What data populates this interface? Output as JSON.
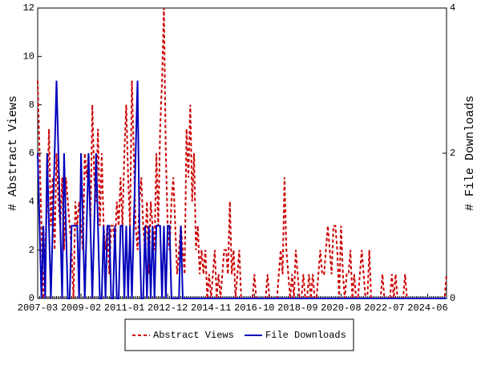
{
  "chart_data": {
    "type": "line",
    "ylabel": "# Abstract Views",
    "y2label": "# File Downloads",
    "categories": [
      "2007-03",
      null,
      null,
      null,
      null,
      null,
      null,
      null,
      null,
      null,
      null,
      null,
      null,
      null,
      null,
      null,
      null,
      null,
      null,
      null,
      null,
      null,
      null,
      "2009-02",
      null,
      null,
      null,
      null,
      null,
      null,
      null,
      null,
      null,
      null,
      null,
      null,
      null,
      null,
      null,
      null,
      null,
      null,
      null,
      null,
      null,
      null,
      "2011-01",
      null,
      null,
      null,
      null,
      null,
      null,
      null,
      null,
      null,
      null,
      null,
      null,
      null,
      null,
      null,
      null,
      null,
      null,
      null,
      null,
      null,
      null,
      "2012-12",
      null,
      null,
      null,
      null,
      null,
      null,
      null,
      null,
      null,
      null,
      null,
      null,
      null,
      null,
      null,
      null,
      null,
      null,
      null,
      null,
      null,
      null,
      "2014-11",
      null,
      null,
      null,
      null,
      null,
      null,
      null,
      null,
      null,
      null,
      null,
      null,
      null,
      null,
      null,
      null,
      null,
      null,
      null,
      null,
      null,
      null,
      "2016-10",
      null,
      null,
      null,
      null,
      null,
      null,
      null,
      null,
      null,
      null,
      null,
      null,
      null,
      null,
      null,
      null,
      null,
      null,
      null,
      null,
      null,
      null,
      "2018-09",
      null,
      null,
      null,
      null,
      null,
      null,
      null,
      null,
      null,
      null,
      null,
      null,
      null,
      null,
      null,
      null,
      null,
      null,
      null,
      null,
      null,
      null,
      "2020-08",
      null,
      null,
      null,
      null,
      null,
      null,
      null,
      null,
      null,
      null,
      null,
      null,
      null,
      null,
      null,
      null,
      null,
      null,
      null,
      null,
      null,
      null,
      "2022-07",
      null,
      null,
      null,
      null,
      null,
      null,
      null,
      null,
      null,
      null,
      null,
      null,
      null,
      null,
      null,
      null,
      null,
      null,
      null,
      null,
      null,
      null,
      "2024-06",
      null,
      null,
      null,
      null,
      null,
      null,
      null,
      null,
      null,
      null
    ],
    "series": [
      {
        "name": "Abstract Views",
        "color": "#cc0000",
        "dashed": true,
        "values": [
          9,
          6,
          3,
          0,
          2,
          4,
          7,
          3,
          5,
          2,
          6,
          4,
          3,
          5,
          2,
          5,
          4,
          3,
          2,
          0,
          4,
          3,
          4,
          3,
          2,
          6,
          5,
          6,
          3,
          8,
          5,
          4,
          7,
          3,
          6,
          3,
          2,
          3,
          1,
          3,
          3,
          2,
          4,
          3,
          5,
          3,
          6,
          8,
          5,
          3,
          9,
          6,
          3,
          2,
          4,
          5,
          3,
          2,
          4,
          1,
          4,
          3,
          2,
          6,
          3,
          7,
          9,
          12,
          6,
          3,
          2,
          4,
          5,
          3,
          1,
          2,
          3,
          2,
          1,
          7,
          5,
          8,
          4,
          6,
          2,
          3,
          1,
          2,
          1,
          2,
          0,
          1,
          0,
          1,
          2,
          0,
          1,
          0,
          1,
          2,
          2,
          1,
          4,
          1,
          2,
          0,
          1,
          2,
          0,
          0,
          0,
          0,
          0,
          0,
          0,
          1,
          0,
          0,
          0,
          0,
          0,
          0,
          1,
          0,
          0,
          0,
          0,
          0,
          1,
          2,
          1,
          5,
          2,
          1,
          0,
          1,
          0,
          2,
          1,
          0,
          0,
          1,
          0,
          0,
          1,
          0,
          1,
          0,
          0,
          1,
          2,
          1,
          1,
          2,
          3,
          2,
          1,
          3,
          3,
          2,
          0,
          3,
          1,
          0,
          1,
          1,
          2,
          0,
          1,
          0,
          0,
          1,
          2,
          1,
          0,
          0,
          2,
          0,
          0,
          0,
          0,
          0,
          0,
          1,
          0,
          0,
          0,
          0,
          1,
          0,
          1,
          0,
          0,
          0,
          0,
          1,
          0,
          0,
          0,
          0,
          0,
          0,
          0,
          0,
          0,
          0,
          0,
          0,
          0,
          0,
          0,
          0,
          0,
          0,
          0,
          0,
          0,
          1
        ]
      },
      {
        "name": "File Downloads",
        "color": "#0000bb",
        "axis": "y2",
        "values": [
          2,
          1,
          0,
          1,
          0,
          2,
          1,
          0,
          1,
          2,
          3,
          2,
          1,
          0,
          2,
          1,
          0,
          0,
          1,
          1,
          1,
          1,
          0,
          2,
          1,
          0,
          1,
          2,
          1,
          0,
          1,
          2,
          1,
          0,
          0,
          1,
          0,
          1,
          1,
          0,
          0,
          1,
          0,
          0,
          1,
          1,
          0,
          1,
          0,
          1,
          0,
          1,
          2,
          3,
          1,
          0,
          0,
          1,
          0,
          1,
          0,
          1,
          0,
          1,
          1,
          1,
          0,
          1,
          0,
          1,
          1,
          0,
          0,
          0,
          0,
          0,
          1,
          0,
          0,
          0,
          0,
          0,
          0,
          0,
          0,
          0,
          0,
          0,
          0,
          0,
          0,
          0,
          0,
          0,
          0,
          0,
          0,
          0,
          0,
          0,
          0,
          0,
          0,
          0,
          0,
          0,
          0,
          0,
          0,
          0,
          0,
          0,
          0,
          0,
          0,
          0,
          0,
          0,
          0,
          0,
          0,
          0,
          0,
          0,
          0,
          0,
          0,
          0,
          0,
          0,
          0,
          0,
          0,
          0,
          0,
          0,
          0,
          0,
          0,
          0,
          0,
          0,
          0,
          0,
          0,
          0,
          0,
          0,
          0,
          0,
          0,
          0,
          0,
          0,
          0,
          0,
          0,
          0,
          0,
          0,
          0,
          0,
          0,
          0,
          0,
          0,
          0,
          0,
          0,
          0,
          0,
          0,
          0,
          0,
          0,
          0,
          0,
          0,
          0,
          0,
          0,
          0,
          0,
          0,
          0,
          0,
          0,
          0,
          0,
          0,
          0,
          0,
          0,
          0,
          0,
          0,
          0,
          0,
          0,
          0,
          0,
          0,
          0,
          0,
          0,
          0,
          0,
          0,
          0,
          0,
          0,
          0,
          0,
          0,
          0,
          0,
          0,
          0
        ]
      }
    ],
    "ylim": [
      0,
      12
    ],
    "yticks": [
      0,
      2,
      4,
      6,
      8,
      10,
      12
    ],
    "y2lim": [
      0,
      4
    ],
    "y2ticks": [
      0,
      2,
      4
    ]
  }
}
